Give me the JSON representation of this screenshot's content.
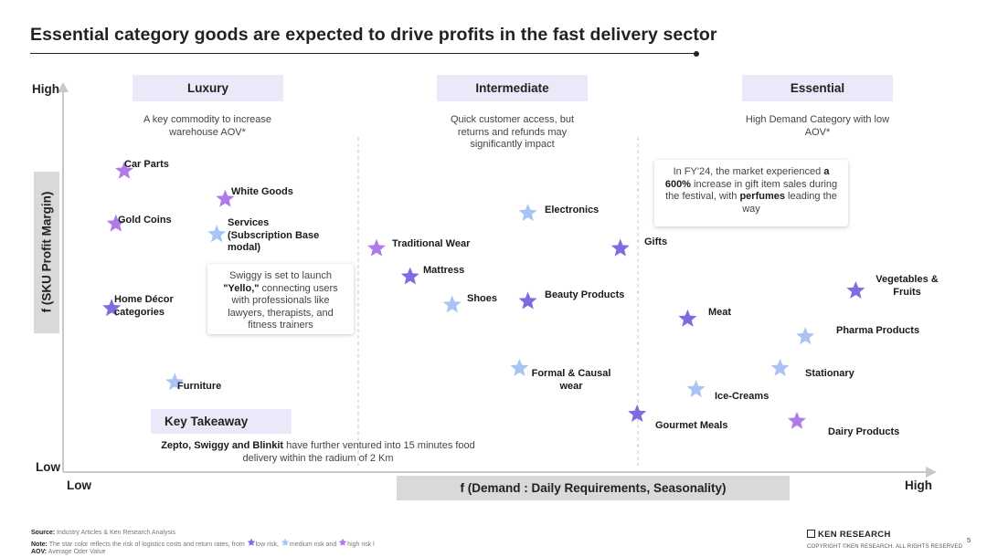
{
  "title": "Essential category goods are expected to drive profits in the fast delivery sector",
  "colors": {
    "low_risk": "#7b6ce0",
    "medium_risk": "#a9c4f2",
    "high_risk": "#b07ae8",
    "header_fill": "#e9e9f9",
    "axis_box": "#d9d9d9"
  },
  "chart_data": {
    "type": "scatter",
    "xlabel": "f (Demand : Daily Requirements, Seasonality)",
    "ylabel": "f (SKU Profit Margin)",
    "x_low": "Low",
    "x_high": "High",
    "y_low": "Low",
    "y_high": "High",
    "xlim": [
      0,
      100
    ],
    "ylim": [
      0,
      100
    ],
    "categories": [
      {
        "name": "Luxury",
        "description": "A key commodity to increase warehouse AOV*"
      },
      {
        "name": "Intermediate",
        "description": "Quick customer access, but returns and refunds may significantly impact"
      },
      {
        "name": "Essential",
        "description": "High Demand Category with low AOV*"
      }
    ],
    "points": [
      {
        "name": "Car Parts",
        "x": 5,
        "y": 80,
        "risk": "high"
      },
      {
        "name": "White Goods",
        "x": 17,
        "y": 72,
        "risk": "high"
      },
      {
        "name": "Gold Coins",
        "x": 4,
        "y": 65,
        "risk": "high"
      },
      {
        "name": "Services (Subscription Base modal)",
        "x": 16,
        "y": 62,
        "risk": "medium"
      },
      {
        "name": "Home Décor categories",
        "x": 3.5,
        "y": 41,
        "risk": "low"
      },
      {
        "name": "Furniture",
        "x": 11,
        "y": 20,
        "risk": "medium"
      },
      {
        "name": "Traditional Wear",
        "x": 35,
        "y": 58,
        "risk": "high"
      },
      {
        "name": "Mattress",
        "x": 39,
        "y": 50,
        "risk": "low"
      },
      {
        "name": "Electronics",
        "x": 53,
        "y": 68,
        "risk": "medium"
      },
      {
        "name": "Shoes",
        "x": 44,
        "y": 42,
        "risk": "medium"
      },
      {
        "name": "Beauty Products",
        "x": 53,
        "y": 43,
        "risk": "low"
      },
      {
        "name": "Formal & Causal wear",
        "x": 52,
        "y": 24,
        "risk": "medium"
      },
      {
        "name": "Gifts",
        "x": 64,
        "y": 58,
        "risk": "low"
      },
      {
        "name": "Gourmet Meals",
        "x": 66,
        "y": 11,
        "risk": "low"
      },
      {
        "name": "Meat",
        "x": 72,
        "y": 38,
        "risk": "low"
      },
      {
        "name": "Ice-Creams",
        "x": 73,
        "y": 18,
        "risk": "medium"
      },
      {
        "name": "Vegetables & Fruits",
        "x": 92,
        "y": 46,
        "risk": "low"
      },
      {
        "name": "Pharma Products",
        "x": 86,
        "y": 33,
        "risk": "medium"
      },
      {
        "name": "Stationary",
        "x": 83,
        "y": 24,
        "risk": "medium"
      },
      {
        "name": "Dairy Products",
        "x": 85,
        "y": 9,
        "risk": "high"
      }
    ],
    "callouts": [
      {
        "id": "yello",
        "parts": [
          "Swiggy is set to launch ",
          "\"Yello,\"",
          " connecting users with professionals like lawyers, therapists, and fitness trainers"
        ]
      },
      {
        "id": "gifts",
        "parts": [
          "In FY'24, the market experienced ",
          "a 600%",
          " increase in gift item sales during the festival, with ",
          "perfumes",
          " leading the way"
        ]
      }
    ]
  },
  "takeaway": {
    "heading": "Key Takeaway",
    "bold": "Zepto, Swiggy and Blinkit",
    "rest": " have further ventured into 15 minutes food delivery within the radium of 2 Km"
  },
  "footer": {
    "source_label": "Source:",
    "source_text": " Industry Articles & Ken Research Analysis",
    "note_label": "Note:",
    "note_text": " The star color reflects the risk of logistics costs and return rates, from ",
    "legend_low": "low risk,",
    "legend_medium": "medium risk and",
    "legend_high": "high risk l",
    "aov_label": "AOV:",
    "aov_text": " Average Oder Value",
    "brand": "KEN RESEARCH",
    "copyright": "COPYRIGHT ©KEN RESEARCH. ALL RIGHTS RESERVED",
    "page": "5"
  }
}
